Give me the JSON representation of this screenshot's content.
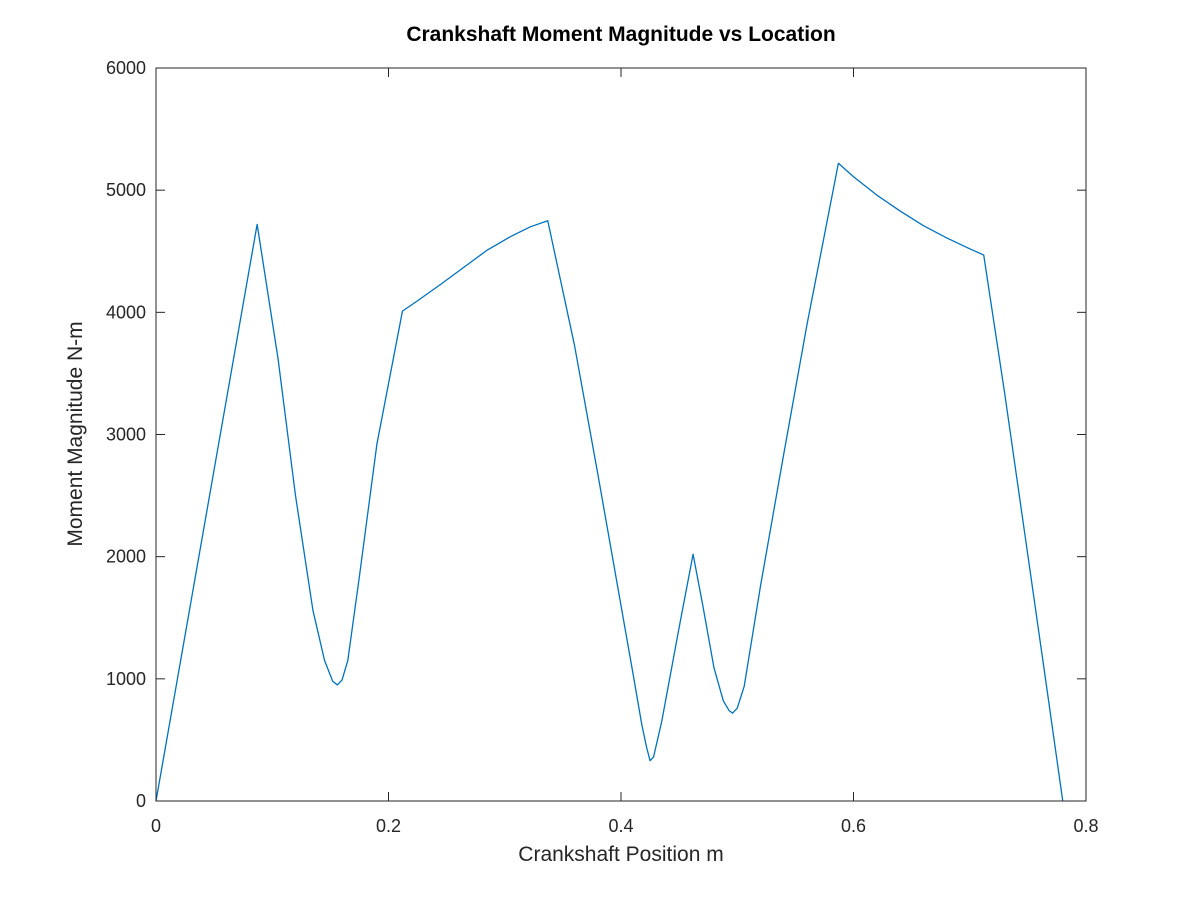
{
  "chart_data": {
    "type": "line",
    "title": "Crankshaft Moment Magnitude vs Location",
    "xlabel": "Crankshaft Position m",
    "ylabel": "Moment Magnitude N-m",
    "xlim": [
      0,
      0.8
    ],
    "ylim": [
      0,
      6000
    ],
    "xticks": [
      0,
      0.2,
      0.4,
      0.6,
      0.8
    ],
    "xtick_labels": [
      "0",
      "0.2",
      "0.4",
      "0.6",
      "0.8"
    ],
    "yticks": [
      0,
      1000,
      2000,
      3000,
      4000,
      5000,
      6000
    ],
    "ytick_labels": [
      "0",
      "1000",
      "2000",
      "3000",
      "4000",
      "5000",
      "6000"
    ],
    "grid": false,
    "box": true,
    "line_color": "#0072bd",
    "series": [
      {
        "x": [
          0,
          0.087,
          0.105,
          0.12,
          0.135,
          0.145,
          0.152,
          0.156,
          0.16,
          0.165,
          0.175,
          0.19,
          0.212,
          0.225,
          0.245,
          0.265,
          0.285,
          0.305,
          0.322,
          0.337,
          0.36,
          0.38,
          0.4,
          0.41,
          0.418,
          0.422,
          0.425,
          0.428,
          0.435,
          0.45,
          0.462,
          0.47,
          0.48,
          0.488,
          0.493,
          0.496,
          0.5,
          0.506,
          0.52,
          0.54,
          0.56,
          0.587,
          0.6,
          0.62,
          0.64,
          0.66,
          0.68,
          0.7,
          0.712,
          0.73,
          0.75,
          0.765,
          0.78
        ],
        "y": [
          0,
          4720,
          3620,
          2500,
          1560,
          1150,
          980,
          950,
          990,
          1150,
          1840,
          2920,
          4010,
          4095,
          4230,
          4370,
          4510,
          4620,
          4700,
          4750,
          3730,
          2680,
          1600,
          1060,
          620,
          440,
          330,
          360,
          650,
          1420,
          2020,
          1620,
          1090,
          820,
          740,
          720,
          760,
          940,
          1760,
          2840,
          3900,
          5220,
          5110,
          4960,
          4830,
          4710,
          4610,
          4520,
          4470,
          3340,
          2010,
          1010,
          0
        ]
      }
    ]
  }
}
